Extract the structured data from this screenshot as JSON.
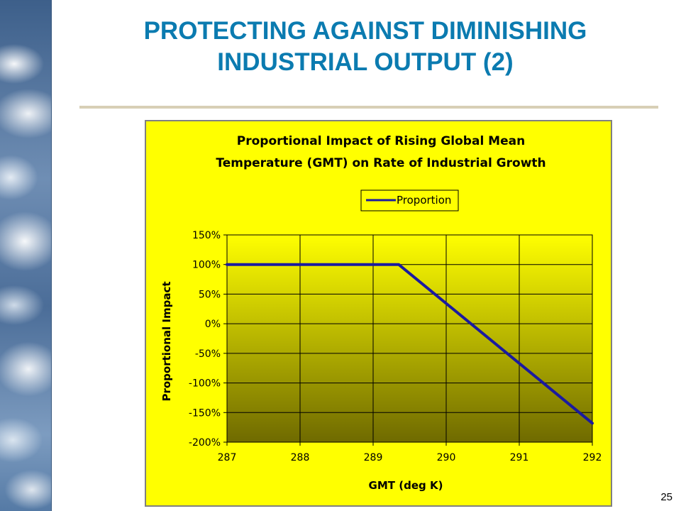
{
  "slide": {
    "title_line1": "PROTECTING AGAINST DIMINISHING",
    "title_line2": "INDUSTRIAL OUTPUT (2)",
    "page_number": "25",
    "title_color": "#0b7bb0",
    "chart_background": "#ffff00",
    "plot_gradient_top": "#ffff00",
    "plot_gradient_bottom": "#6f6a00"
  },
  "chart_data": {
    "type": "line",
    "title_line1": "Proportional Impact of Rising Global Mean",
    "title_line2": "Temperature (GMT) on Rate of Industrial Growth",
    "xlabel": "GMT (deg K)",
    "ylabel": "Proportional Impact",
    "xlim": [
      287,
      292
    ],
    "ylim": [
      -200,
      150
    ],
    "x_ticks": [
      287,
      288,
      289,
      290,
      291,
      292
    ],
    "x_tick_labels": [
      "287",
      "288",
      "289",
      "290",
      "291",
      "292"
    ],
    "y_ticks": [
      150,
      100,
      50,
      0,
      -50,
      -100,
      -150,
      -200
    ],
    "y_tick_labels": [
      "150%",
      "100%",
      "50%",
      "0%",
      "-50%",
      "-100%",
      "-150%",
      "-200%"
    ],
    "grid": true,
    "legend_position": "top-center",
    "series": [
      {
        "name": "Proportion",
        "color": "#1a1aa0",
        "x": [
          287,
          289.35,
          292
        ],
        "y": [
          100,
          100,
          -168
        ]
      }
    ]
  }
}
